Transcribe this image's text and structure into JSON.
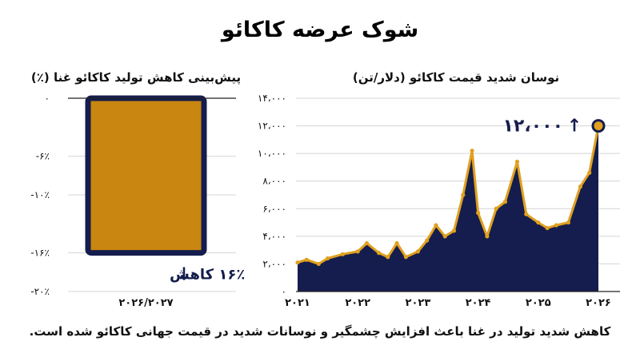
{
  "title": "شوک عرضه کاکائو",
  "footer": "کاهش شدید تولید در غنا باعث افزایش چشمگیر و نوسانات شدید در قیمت جهانی کاکائو شده است.",
  "colors": {
    "navy": "#141d4d",
    "gold": "#e0a020",
    "bar_fill": "#c98610",
    "area_fill": "#141d4d"
  },
  "chart_data": [
    {
      "type": "bar",
      "title": "پیش‌بینی کاهش تولید کاکائو غنا (٪)",
      "categories": [
        "۲۰۲۶/۲۰۲۷"
      ],
      "values": [
        -16
      ],
      "ylim": [
        -20,
        0
      ],
      "y_ticks": [
        0,
        -6,
        -10,
        -16,
        -20
      ],
      "y_tick_labels": [
        "۰",
        "-۶٪",
        "-۱۰٪",
        "-۱۶٪",
        "-۲۰٪"
      ],
      "annotation": {
        "text": "۱۶٪ کاهش",
        "arrow": "↓",
        "value": -16
      },
      "grid": true
    },
    {
      "type": "area",
      "title": "نوسان شدید قیمت کاکائو (دلار/تن)",
      "x": [
        2021.0,
        2021.15,
        2021.35,
        2021.5,
        2021.75,
        2022.0,
        2022.15,
        2022.35,
        2022.5,
        2022.65,
        2022.8,
        2023.0,
        2023.15,
        2023.3,
        2023.45,
        2023.6,
        2023.75,
        2023.9,
        2024.0,
        2024.15,
        2024.3,
        2024.45,
        2024.65,
        2024.8,
        2025.0,
        2025.15,
        2025.3,
        2025.5,
        2025.7,
        2025.85,
        2026.0
      ],
      "values": [
        2100,
        2300,
        2000,
        2400,
        2700,
        2900,
        3500,
        2800,
        2500,
        3500,
        2500,
        2900,
        3700,
        4800,
        4000,
        4400,
        7000,
        10200,
        5700,
        4000,
        6000,
        6500,
        9400,
        5600,
        5000,
        4600,
        4800,
        5000,
        7600,
        8600,
        12000
      ],
      "ylim": [
        0,
        14000
      ],
      "y_ticks": [
        0,
        2000,
        4000,
        6000,
        8000,
        10000,
        12000,
        14000
      ],
      "y_tick_labels": [
        "۰",
        "۲،۰۰۰",
        "۴،۰۰۰",
        "۶،۰۰۰",
        "۸،۰۰۰",
        "۱۰،۰۰۰",
        "۱۲،۰۰۰",
        "۱۴،۰۰۰"
      ],
      "x_ticks": [
        2021,
        2022,
        2023,
        2024,
        2025,
        2026
      ],
      "x_tick_labels": [
        "۲۰۲۱",
        "۲۰۲۲",
        "۲۰۲۳",
        "۲۰۲۴",
        "۲۰۲۵",
        "۲۰۲۶"
      ],
      "annotation": {
        "text": "۱۲،۰۰۰",
        "arrow": "↑",
        "value": 12000
      },
      "grid": true
    }
  ]
}
